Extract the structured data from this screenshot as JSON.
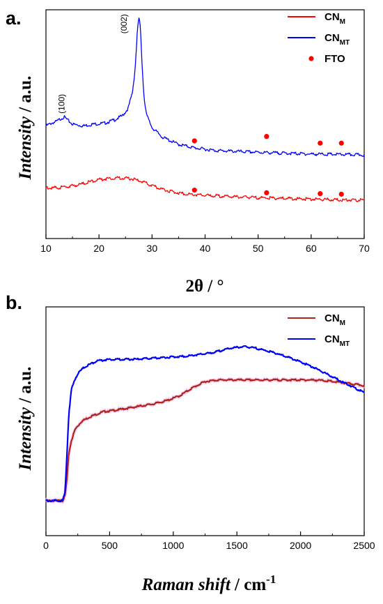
{
  "chart_data": [
    {
      "type": "line",
      "panel_label": "a.",
      "xlabel": "2θ / °",
      "ylabel_italic": "Intensity",
      "ylabel_rest": " / a.u.",
      "xlim": [
        10,
        70
      ],
      "xticks": [
        "10",
        "20",
        "30",
        "40",
        "50",
        "60",
        "70"
      ],
      "grid": false,
      "legend_position": "top-right",
      "legend": [
        {
          "base": "CN",
          "sub": "M",
          "kind": "line",
          "color": "#ff0000"
        },
        {
          "base": "CN",
          "sub": "MT",
          "kind": "line",
          "color": "#0000ff"
        },
        {
          "base": "FTO",
          "sub": "",
          "kind": "marker",
          "color": "#ff0000"
        }
      ],
      "series": [
        {
          "name": "CN_MT",
          "color": "#0000ff",
          "x": [
            10,
            11,
            12,
            13,
            13.5,
            14,
            15,
            17,
            19,
            21,
            23,
            24.5,
            25.5,
            26.3,
            26.8,
            27.2,
            27.5,
            27.8,
            28.1,
            28.5,
            29,
            30,
            32,
            35,
            38,
            42,
            46,
            50,
            55,
            60,
            65,
            70
          ],
          "y": [
            2.6,
            2.75,
            2.85,
            3.05,
            3.1,
            2.95,
            2.7,
            2.6,
            2.7,
            2.75,
            2.95,
            3.2,
            3.6,
            4.5,
            5.8,
            7.8,
            8.8,
            8.2,
            6.2,
            4.2,
            3.2,
            2.5,
            1.95,
            1.55,
            1.35,
            1.2,
            1.15,
            1.1,
            1.05,
            1.0,
            0.98,
            0.95
          ],
          "annotations": [
            {
              "text": "(100)",
              "x": 13.5,
              "y": 3.3
            },
            {
              "text": "(002)",
              "x": 25.2,
              "y": 8.4
            }
          ]
        },
        {
          "name": "CN_M",
          "color": "#ff0000",
          "x": [
            10,
            12,
            14,
            16,
            18,
            20,
            22,
            24,
            26,
            28,
            30,
            32,
            34,
            36,
            40,
            45,
            50,
            55,
            60,
            65,
            70
          ],
          "y": [
            -0.9,
            -0.92,
            -0.85,
            -0.75,
            -0.6,
            -0.45,
            -0.38,
            -0.35,
            -0.4,
            -0.55,
            -0.8,
            -1.0,
            -1.15,
            -1.25,
            -1.35,
            -1.42,
            -1.48,
            -1.52,
            -1.56,
            -1.6,
            -1.62
          ]
        },
        {
          "name": "FTO",
          "kind": "markers",
          "color": "#ff0000",
          "x": [
            38,
            51.6,
            61.7,
            65.7,
            38,
            51.6,
            61.7,
            65.7
          ],
          "y": [
            1.75,
            2.0,
            1.62,
            1.62,
            -1.05,
            -1.2,
            -1.25,
            -1.28
          ]
        }
      ]
    },
    {
      "type": "line",
      "panel_label": "b.",
      "xlabel_italic": "Raman shift",
      "xlabel_rest": " / cm",
      "xlabel_sup": "-1",
      "ylabel_italic": "Intensity",
      "ylabel_rest": " / a.u.",
      "xlim": [
        0,
        2500
      ],
      "xticks": [
        "0",
        "500",
        "1000",
        "1500",
        "2000",
        "2500"
      ],
      "grid": false,
      "legend_position": "top-right",
      "legend": [
        {
          "base": "CN",
          "sub": "M",
          "kind": "line",
          "color": "#b02418"
        },
        {
          "base": "CN",
          "sub": "MT",
          "kind": "line",
          "color": "#0000ff"
        }
      ],
      "series": [
        {
          "name": "CN_M",
          "color": "#b02418",
          "x": [
            0,
            130,
            150,
            165,
            180,
            200,
            230,
            280,
            350,
            450,
            550,
            700,
            850,
            950,
            1050,
            1150,
            1250,
            1350,
            1500,
            1700,
            1900,
            2100,
            2200,
            2300,
            2400,
            2500
          ],
          "y": [
            0.0,
            0.0,
            0.03,
            0.14,
            0.3,
            0.38,
            0.45,
            0.5,
            0.53,
            0.56,
            0.57,
            0.59,
            0.61,
            0.63,
            0.66,
            0.71,
            0.75,
            0.76,
            0.76,
            0.76,
            0.76,
            0.76,
            0.755,
            0.745,
            0.735,
            0.725
          ]
        },
        {
          "name": "CN_MT",
          "color": "#0000ff",
          "x": [
            0,
            130,
            150,
            165,
            180,
            200,
            230,
            260,
            300,
            350,
            400,
            500,
            700,
            900,
            1100,
            1300,
            1450,
            1550,
            1650,
            1800,
            1950,
            2100,
            2200,
            2300,
            2400,
            2500
          ],
          "y": [
            0.0,
            0.0,
            0.05,
            0.3,
            0.55,
            0.7,
            0.77,
            0.81,
            0.84,
            0.86,
            0.88,
            0.89,
            0.89,
            0.9,
            0.91,
            0.93,
            0.96,
            0.97,
            0.96,
            0.93,
            0.89,
            0.84,
            0.8,
            0.76,
            0.72,
            0.68
          ]
        }
      ]
    }
  ]
}
